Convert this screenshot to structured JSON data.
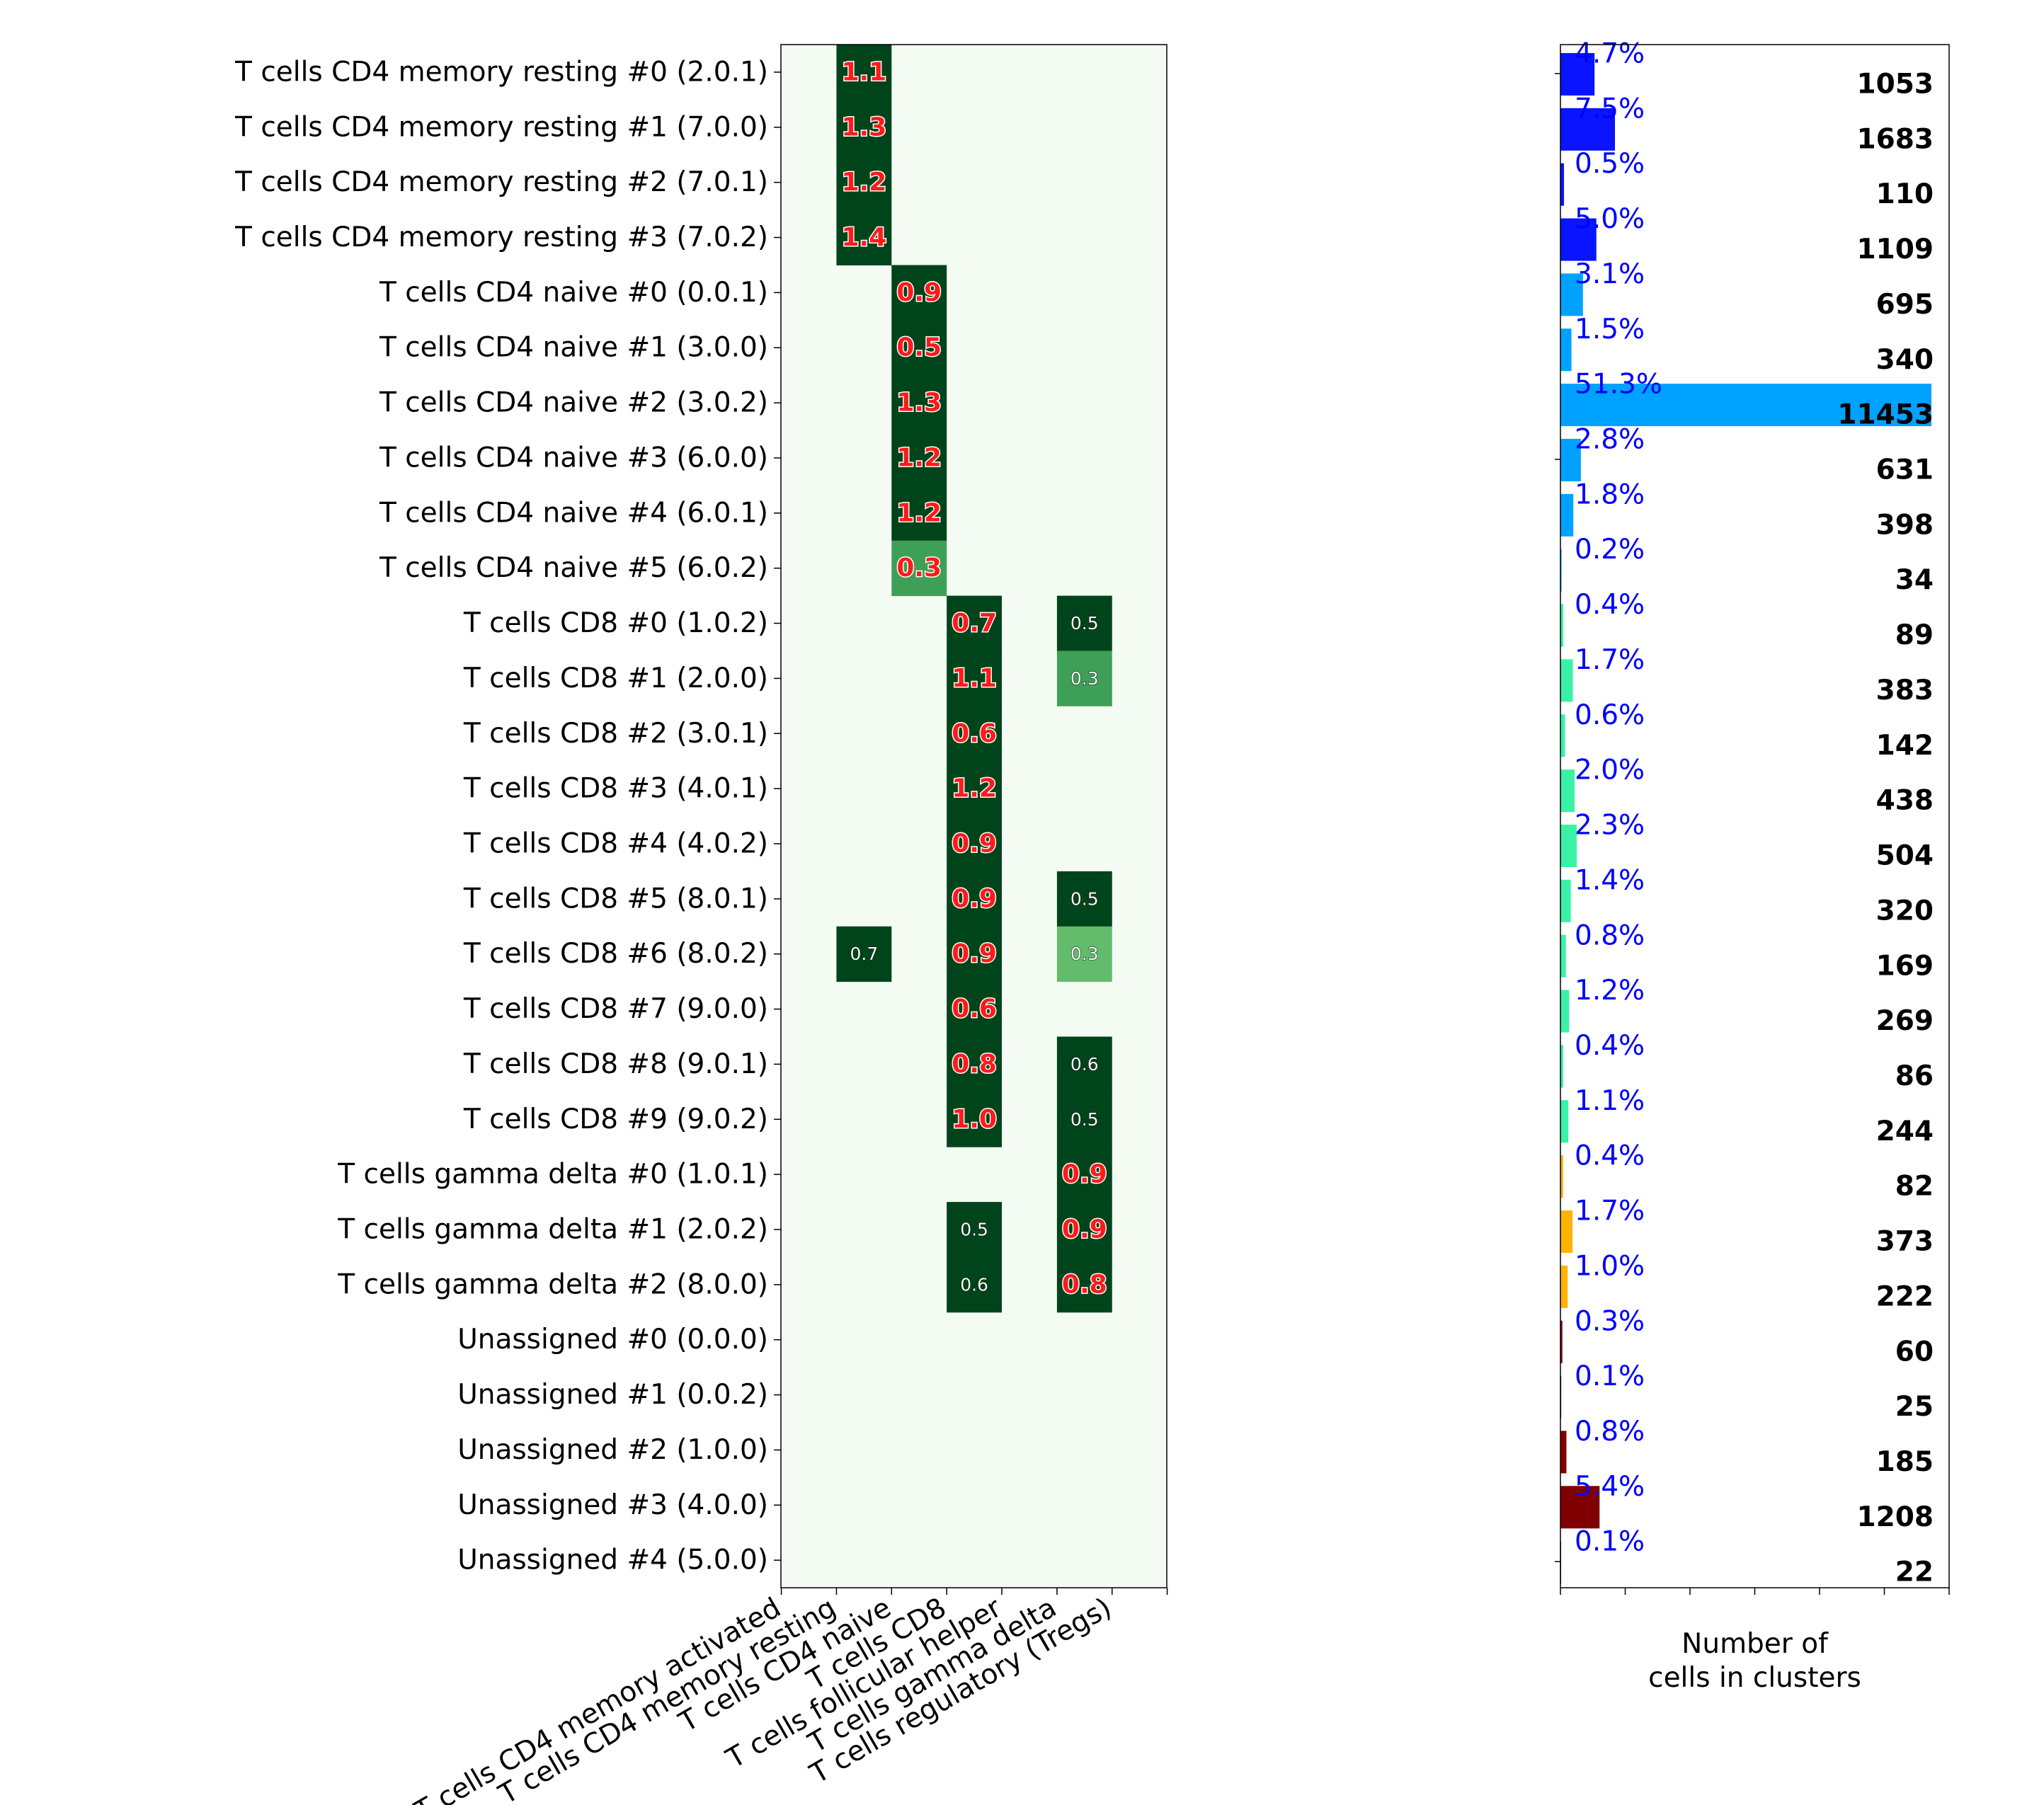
{
  "colors": {
    "heatmap_background": "#f4fbf2",
    "cell_dark": "#00441b",
    "cell_light": "#3e9f56",
    "cell_lighter": "#63bb6c",
    "value_text_large": "#ff1a1a",
    "percent_text": "#0000ff"
  },
  "chart_data": [
    {
      "type": "heatmap",
      "rows": [
        "T cells CD4 memory resting #0 (2.0.1)",
        "T cells CD4 memory resting #1 (7.0.0)",
        "T cells CD4 memory resting #2 (7.0.1)",
        "T cells CD4 memory resting #3 (7.0.2)",
        "T cells CD4 naive #0 (0.0.1)",
        "T cells CD4 naive #1 (3.0.0)",
        "T cells CD4 naive #2 (3.0.2)",
        "T cells CD4 naive #3 (6.0.0)",
        "T cells CD4 naive #4 (6.0.1)",
        "T cells CD4 naive #5 (6.0.2)",
        "T cells CD8 #0 (1.0.2)",
        "T cells CD8 #1 (2.0.0)",
        "T cells CD8 #2 (3.0.1)",
        "T cells CD8 #3 (4.0.1)",
        "T cells CD8 #4 (4.0.2)",
        "T cells CD8 #5 (8.0.1)",
        "T cells CD8 #6 (8.0.2)",
        "T cells CD8 #7 (9.0.0)",
        "T cells CD8 #8 (9.0.1)",
        "T cells CD8 #9 (9.0.2)",
        "T cells gamma delta #0 (1.0.1)",
        "T cells gamma delta #1 (2.0.2)",
        "T cells gamma delta #2 (8.0.0)",
        "Unassigned #0 (0.0.0)",
        "Unassigned #1 (0.0.2)",
        "Unassigned #2 (1.0.0)",
        "Unassigned #3 (4.0.0)",
        "Unassigned #4 (5.0.0)"
      ],
      "columns": [
        "T cells CD4 memory activated",
        "T cells CD4 memory resting",
        "T cells CD4 naive",
        "T cells CD8",
        "T cells follicular helper",
        "T cells gamma delta",
        "T cells regulatory (Tregs)"
      ],
      "cells": [
        {
          "row": 0,
          "col": 1,
          "value": "1.1",
          "style": "large",
          "shade": "dark"
        },
        {
          "row": 1,
          "col": 1,
          "value": "1.3",
          "style": "large",
          "shade": "dark"
        },
        {
          "row": 2,
          "col": 1,
          "value": "1.2",
          "style": "large",
          "shade": "dark"
        },
        {
          "row": 3,
          "col": 1,
          "value": "1.4",
          "style": "large",
          "shade": "dark"
        },
        {
          "row": 4,
          "col": 2,
          "value": "0.9",
          "style": "large",
          "shade": "dark"
        },
        {
          "row": 5,
          "col": 2,
          "value": "0.5",
          "style": "large",
          "shade": "dark"
        },
        {
          "row": 6,
          "col": 2,
          "value": "1.3",
          "style": "large",
          "shade": "dark"
        },
        {
          "row": 7,
          "col": 2,
          "value": "1.2",
          "style": "large",
          "shade": "dark"
        },
        {
          "row": 8,
          "col": 2,
          "value": "1.2",
          "style": "large",
          "shade": "dark"
        },
        {
          "row": 9,
          "col": 2,
          "value": "0.3",
          "style": "large",
          "shade": "light"
        },
        {
          "row": 10,
          "col": 3,
          "value": "0.7",
          "style": "large",
          "shade": "dark"
        },
        {
          "row": 10,
          "col": 5,
          "value": "0.5",
          "style": "small",
          "shade": "dark"
        },
        {
          "row": 11,
          "col": 3,
          "value": "1.1",
          "style": "large",
          "shade": "dark"
        },
        {
          "row": 11,
          "col": 5,
          "value": "0.3",
          "style": "small",
          "shade": "light"
        },
        {
          "row": 12,
          "col": 3,
          "value": "0.6",
          "style": "large",
          "shade": "dark"
        },
        {
          "row": 13,
          "col": 3,
          "value": "1.2",
          "style": "large",
          "shade": "dark"
        },
        {
          "row": 14,
          "col": 3,
          "value": "0.9",
          "style": "large",
          "shade": "dark"
        },
        {
          "row": 15,
          "col": 3,
          "value": "0.9",
          "style": "large",
          "shade": "dark"
        },
        {
          "row": 15,
          "col": 5,
          "value": "0.5",
          "style": "small",
          "shade": "dark"
        },
        {
          "row": 16,
          "col": 1,
          "value": "0.7",
          "style": "small",
          "shade": "dark"
        },
        {
          "row": 16,
          "col": 3,
          "value": "0.9",
          "style": "large",
          "shade": "dark"
        },
        {
          "row": 16,
          "col": 5,
          "value": "0.3",
          "style": "small",
          "shade": "lighter"
        },
        {
          "row": 17,
          "col": 3,
          "value": "0.6",
          "style": "large",
          "shade": "dark"
        },
        {
          "row": 18,
          "col": 3,
          "value": "0.8",
          "style": "large",
          "shade": "dark"
        },
        {
          "row": 18,
          "col": 5,
          "value": "0.6",
          "style": "small",
          "shade": "dark"
        },
        {
          "row": 19,
          "col": 3,
          "value": "1.0",
          "style": "large",
          "shade": "dark"
        },
        {
          "row": 19,
          "col": 5,
          "value": "0.5",
          "style": "small",
          "shade": "dark"
        },
        {
          "row": 20,
          "col": 5,
          "value": "0.9",
          "style": "large",
          "shade": "dark"
        },
        {
          "row": 21,
          "col": 3,
          "value": "0.5",
          "style": "small",
          "shade": "dark"
        },
        {
          "row": 21,
          "col": 5,
          "value": "0.9",
          "style": "large",
          "shade": "dark"
        },
        {
          "row": 22,
          "col": 3,
          "value": "0.6",
          "style": "small",
          "shade": "dark"
        },
        {
          "row": 22,
          "col": 5,
          "value": "0.8",
          "style": "large",
          "shade": "dark"
        }
      ],
      "grid": false
    },
    {
      "type": "bar",
      "orientation": "horizontal",
      "xlabel": "Number of\ncells in clusters",
      "xlim": [
        0,
        12000
      ],
      "bars": [
        {
          "count": 1053,
          "percent": "4.7%",
          "color": "#0a14ff"
        },
        {
          "count": 1683,
          "percent": "7.5%",
          "color": "#0a14ff"
        },
        {
          "count": 110,
          "percent": "0.5%",
          "color": "#0a14ff"
        },
        {
          "count": 1109,
          "percent": "5.0%",
          "color": "#0a14ff"
        },
        {
          "count": 695,
          "percent": "3.1%",
          "color": "#00a2ff"
        },
        {
          "count": 340,
          "percent": "1.5%",
          "color": "#00a2ff"
        },
        {
          "count": 11453,
          "percent": "51.3%",
          "color": "#00a2ff"
        },
        {
          "count": 631,
          "percent": "2.8%",
          "color": "#00a2ff"
        },
        {
          "count": 398,
          "percent": "1.8%",
          "color": "#00a2ff"
        },
        {
          "count": 34,
          "percent": "0.2%",
          "color": "#00a2ff"
        },
        {
          "count": 89,
          "percent": "0.4%",
          "color": "#3af2a6"
        },
        {
          "count": 383,
          "percent": "1.7%",
          "color": "#3af2a6"
        },
        {
          "count": 142,
          "percent": "0.6%",
          "color": "#3af2a6"
        },
        {
          "count": 438,
          "percent": "2.0%",
          "color": "#3af2a6"
        },
        {
          "count": 504,
          "percent": "2.3%",
          "color": "#3af2a6"
        },
        {
          "count": 320,
          "percent": "1.4%",
          "color": "#3af2a6"
        },
        {
          "count": 169,
          "percent": "0.8%",
          "color": "#3af2a6"
        },
        {
          "count": 269,
          "percent": "1.2%",
          "color": "#3af2a6"
        },
        {
          "count": 86,
          "percent": "0.4%",
          "color": "#3af2a6"
        },
        {
          "count": 244,
          "percent": "1.1%",
          "color": "#3af2a6"
        },
        {
          "count": 82,
          "percent": "0.4%",
          "color": "#ffb300"
        },
        {
          "count": 373,
          "percent": "1.7%",
          "color": "#ffb300"
        },
        {
          "count": 222,
          "percent": "1.0%",
          "color": "#ffb300"
        },
        {
          "count": 60,
          "percent": "0.3%",
          "color": "#800000"
        },
        {
          "count": 25,
          "percent": "0.1%",
          "color": "#800000"
        },
        {
          "count": 185,
          "percent": "0.8%",
          "color": "#800000"
        },
        {
          "count": 1208,
          "percent": "5.4%",
          "color": "#800000"
        },
        {
          "count": 22,
          "percent": "0.1%",
          "color": "#800000"
        }
      ]
    }
  ]
}
